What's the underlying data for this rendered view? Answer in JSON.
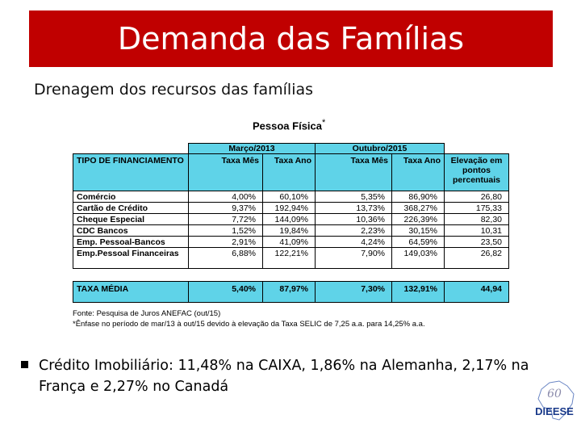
{
  "slide": {
    "title": "Demanda das Famílias",
    "subtitle": "Drenagem dos recursos das famílias"
  },
  "table": {
    "title": "Pessoa Física",
    "title_mark": "*",
    "period1": "Março/2013",
    "period2": "Outubro/2015",
    "col_type": "TIPO DE FINANCIAMENTO",
    "col_month": "Taxa Mês",
    "col_year": "Taxa Ano",
    "col_elev": "Elevação em pontos percentuais",
    "rows": [
      {
        "label": "Comércio",
        "m1": "4,00%",
        "a1": "60,10%",
        "m2": "5,35%",
        "a2": "86,90%",
        "elev": "26,80"
      },
      {
        "label": "Cartão de Crédito",
        "m1": "9,37%",
        "a1": "192,94%",
        "m2": "13,73%",
        "a2": "368,27%",
        "elev": "175,33"
      },
      {
        "label": "Cheque Especial",
        "m1": "7,72%",
        "a1": "144,09%",
        "m2": "10,36%",
        "a2": "226,39%",
        "elev": "82,30"
      },
      {
        "label": "CDC Bancos",
        "m1": "1,52%",
        "a1": "19,84%",
        "m2": "2,23%",
        "a2": "30,15%",
        "elev": "10,31"
      },
      {
        "label": "Emp. Pessoal-Bancos",
        "m1": "2,91%",
        "a1": "41,09%",
        "m2": "4,24%",
        "a2": "64,59%",
        "elev": "23,50"
      },
      {
        "label": "Emp.Pessoal Financeiras",
        "m1": "6,88%",
        "a1": "122,21%",
        "m2": "7,90%",
        "a2": "149,03%",
        "elev": "26,82"
      }
    ],
    "total": {
      "label": "TAXA MÉDIA",
      "m1": "5,40%",
      "a1": "87,97%",
      "m2": "7,30%",
      "a2": "132,91%",
      "elev": "44,94"
    }
  },
  "source": {
    "line1": "Fonte: Pesquisa de Juros ANEFAC (out/15)",
    "line2": "*Ênfase no período de mar/13 à out/15 devido à elevação da Taxa SELIC de 7,25 a.a. para 14,25% a.a."
  },
  "bullet": {
    "text": "Crédito Imobiliário: 11,48% na CAIXA, 1,86% na Alemanha, 2,17% na França e 2,27% no Canadá"
  },
  "logo": {
    "text": "DIEESE",
    "years": "60"
  },
  "colors": {
    "title_bg": "#c00000",
    "table_header": "#5fd3e8"
  }
}
